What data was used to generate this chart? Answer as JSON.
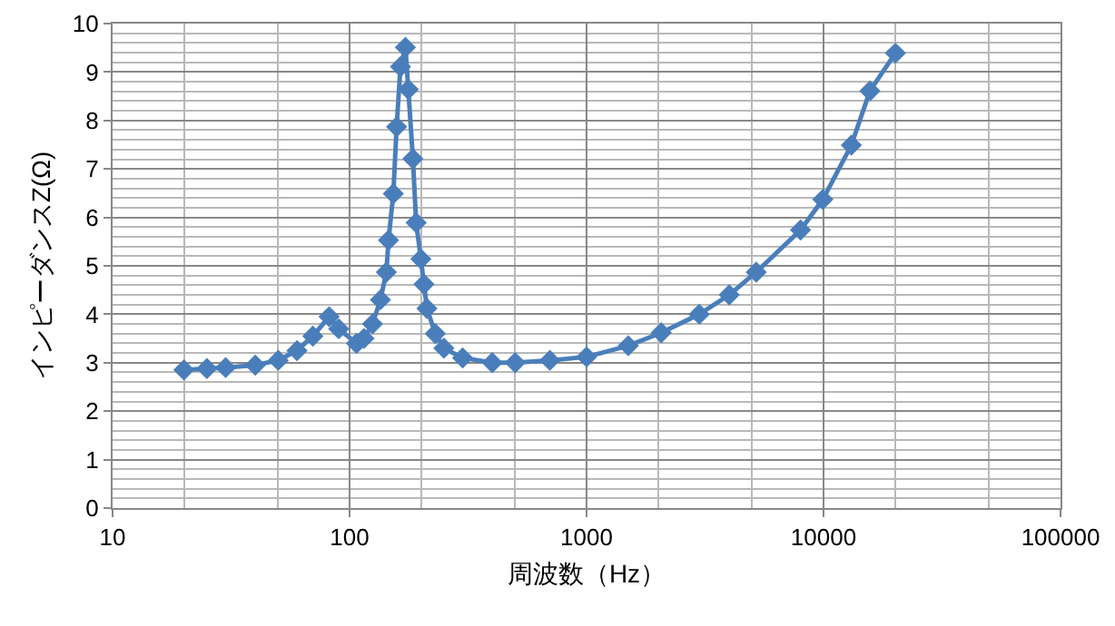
{
  "chart_data": {
    "type": "line",
    "xlabel": "周波数（Hz）",
    "ylabel": "インピーダンスZ(Ω)",
    "log": "x",
    "grid": true,
    "marker": "diamond",
    "line_style": "solid",
    "x": [
      20,
      25,
      30,
      40,
      50,
      60,
      70,
      82,
      90,
      107,
      115,
      125,
      135,
      143,
      146,
      153,
      158,
      164,
      172,
      177,
      185,
      191,
      200,
      206,
      212,
      230,
      250,
      300,
      400,
      500,
      700,
      1000,
      1500,
      2066,
      2990,
      4000,
      5200,
      8000,
      9930,
      13100,
      15700,
      20100
    ],
    "series": [
      {
        "color": "#4a7ebb",
        "values": [
          2.85,
          2.88,
          2.9,
          2.95,
          3.05,
          3.25,
          3.55,
          3.95,
          3.7,
          3.4,
          3.5,
          3.8,
          4.3,
          4.87,
          5.53,
          6.49,
          7.87,
          9.11,
          9.51,
          8.64,
          7.21,
          5.89,
          5.14,
          4.62,
          4.12,
          3.6,
          3.3,
          3.1,
          3.0,
          3.0,
          3.05,
          3.12,
          3.35,
          3.62,
          4.0,
          4.4,
          4.87,
          5.74,
          6.37,
          7.49,
          8.61,
          9.39
        ]
      }
    ],
    "xlim": [
      10,
      100000
    ],
    "xticks": [
      10,
      100,
      1000,
      10000,
      100000
    ],
    "ylim": [
      0,
      10
    ],
    "yticks": [
      0,
      1,
      2,
      3,
      4,
      5,
      6,
      7,
      8,
      9,
      10
    ]
  }
}
